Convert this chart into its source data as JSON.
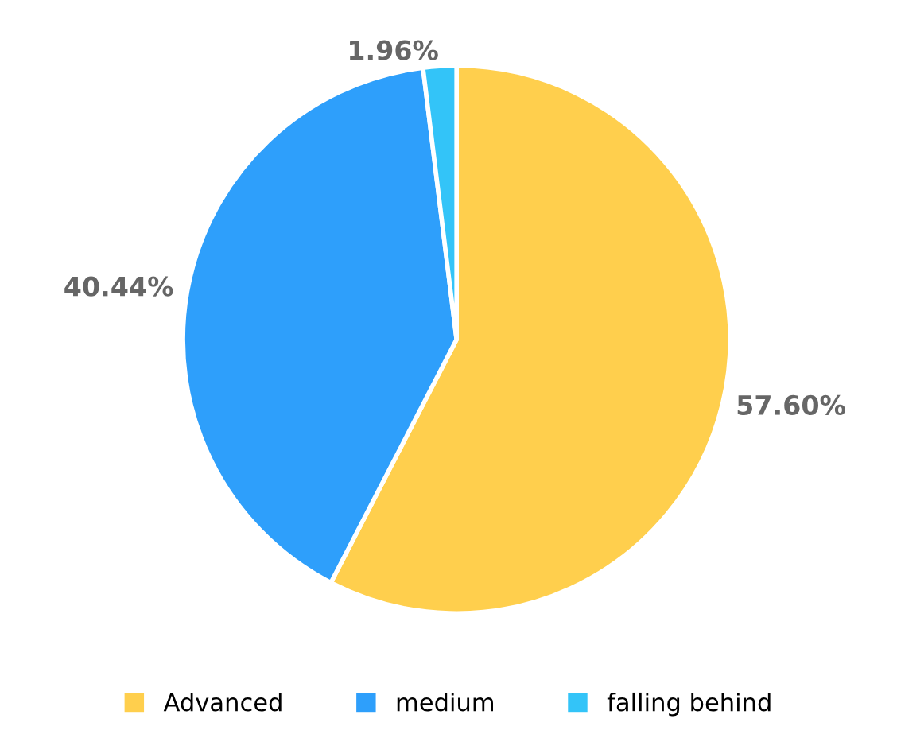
{
  "chart_data": {
    "type": "pie",
    "categories": [
      "Advanced",
      "medium",
      "falling behind"
    ],
    "values": [
      57.6,
      40.44,
      1.96
    ],
    "colors": [
      "#ffcf4d",
      "#2e9ffb",
      "#33c4f8"
    ],
    "value_labels": [
      "57.60%",
      "40.44%",
      "1.96%"
    ],
    "legend": "bottom"
  }
}
